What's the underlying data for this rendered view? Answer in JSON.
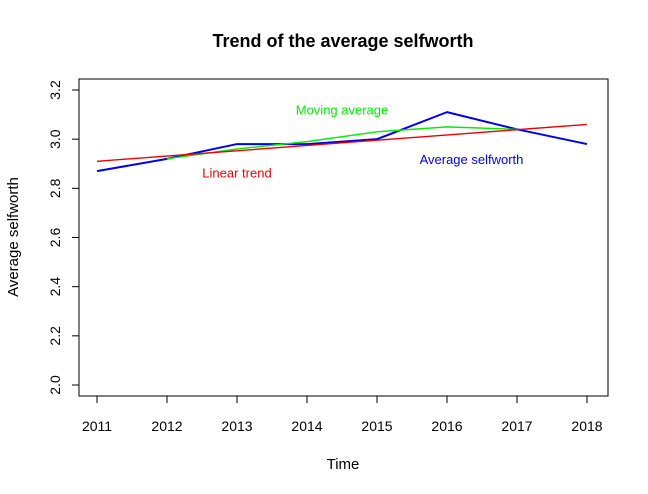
{
  "chart_data": {
    "type": "line",
    "title": "Trend of the average selfworth",
    "xlabel": "Time",
    "ylabel": "Average selfworth",
    "x": [
      2011,
      2012,
      2013,
      2014,
      2015,
      2016,
      2017,
      2018
    ],
    "xlim": [
      2011,
      2018
    ],
    "ylim": [
      2.0,
      3.2
    ],
    "yticks": [
      2.0,
      2.2,
      2.4,
      2.6,
      2.8,
      3.0,
      3.2
    ],
    "ytick_labels": [
      "2.0",
      "2.2",
      "2.4",
      "2.6",
      "2.8",
      "3.0",
      "3.2"
    ],
    "grid": false,
    "series": [
      {
        "name": "Average selfworth",
        "color": "#0000ee",
        "values": [
          2.87,
          2.92,
          2.98,
          2.98,
          3.0,
          3.11,
          3.04,
          2.98
        ]
      },
      {
        "name": "Moving average",
        "color": "#00ee00",
        "x": [
          2012,
          2013,
          2014,
          2015,
          2016,
          2017
        ],
        "values": [
          2.92,
          2.96,
          2.99,
          3.03,
          3.05,
          3.04
        ]
      },
      {
        "name": "Linear trend",
        "color": "#ee0000",
        "x": [
          2011,
          2018
        ],
        "values": [
          2.91,
          3.06
        ]
      }
    ],
    "annotations": [
      {
        "text": "Moving average",
        "color": "#00ee00",
        "x": 2014.5,
        "y": 3.1
      },
      {
        "text": "Average selfworth",
        "color": "#0000ee",
        "x": 2016.35,
        "y": 2.9
      },
      {
        "text": "Linear trend",
        "color": "#ee0000",
        "x": 2013.0,
        "y": 2.845
      }
    ]
  }
}
